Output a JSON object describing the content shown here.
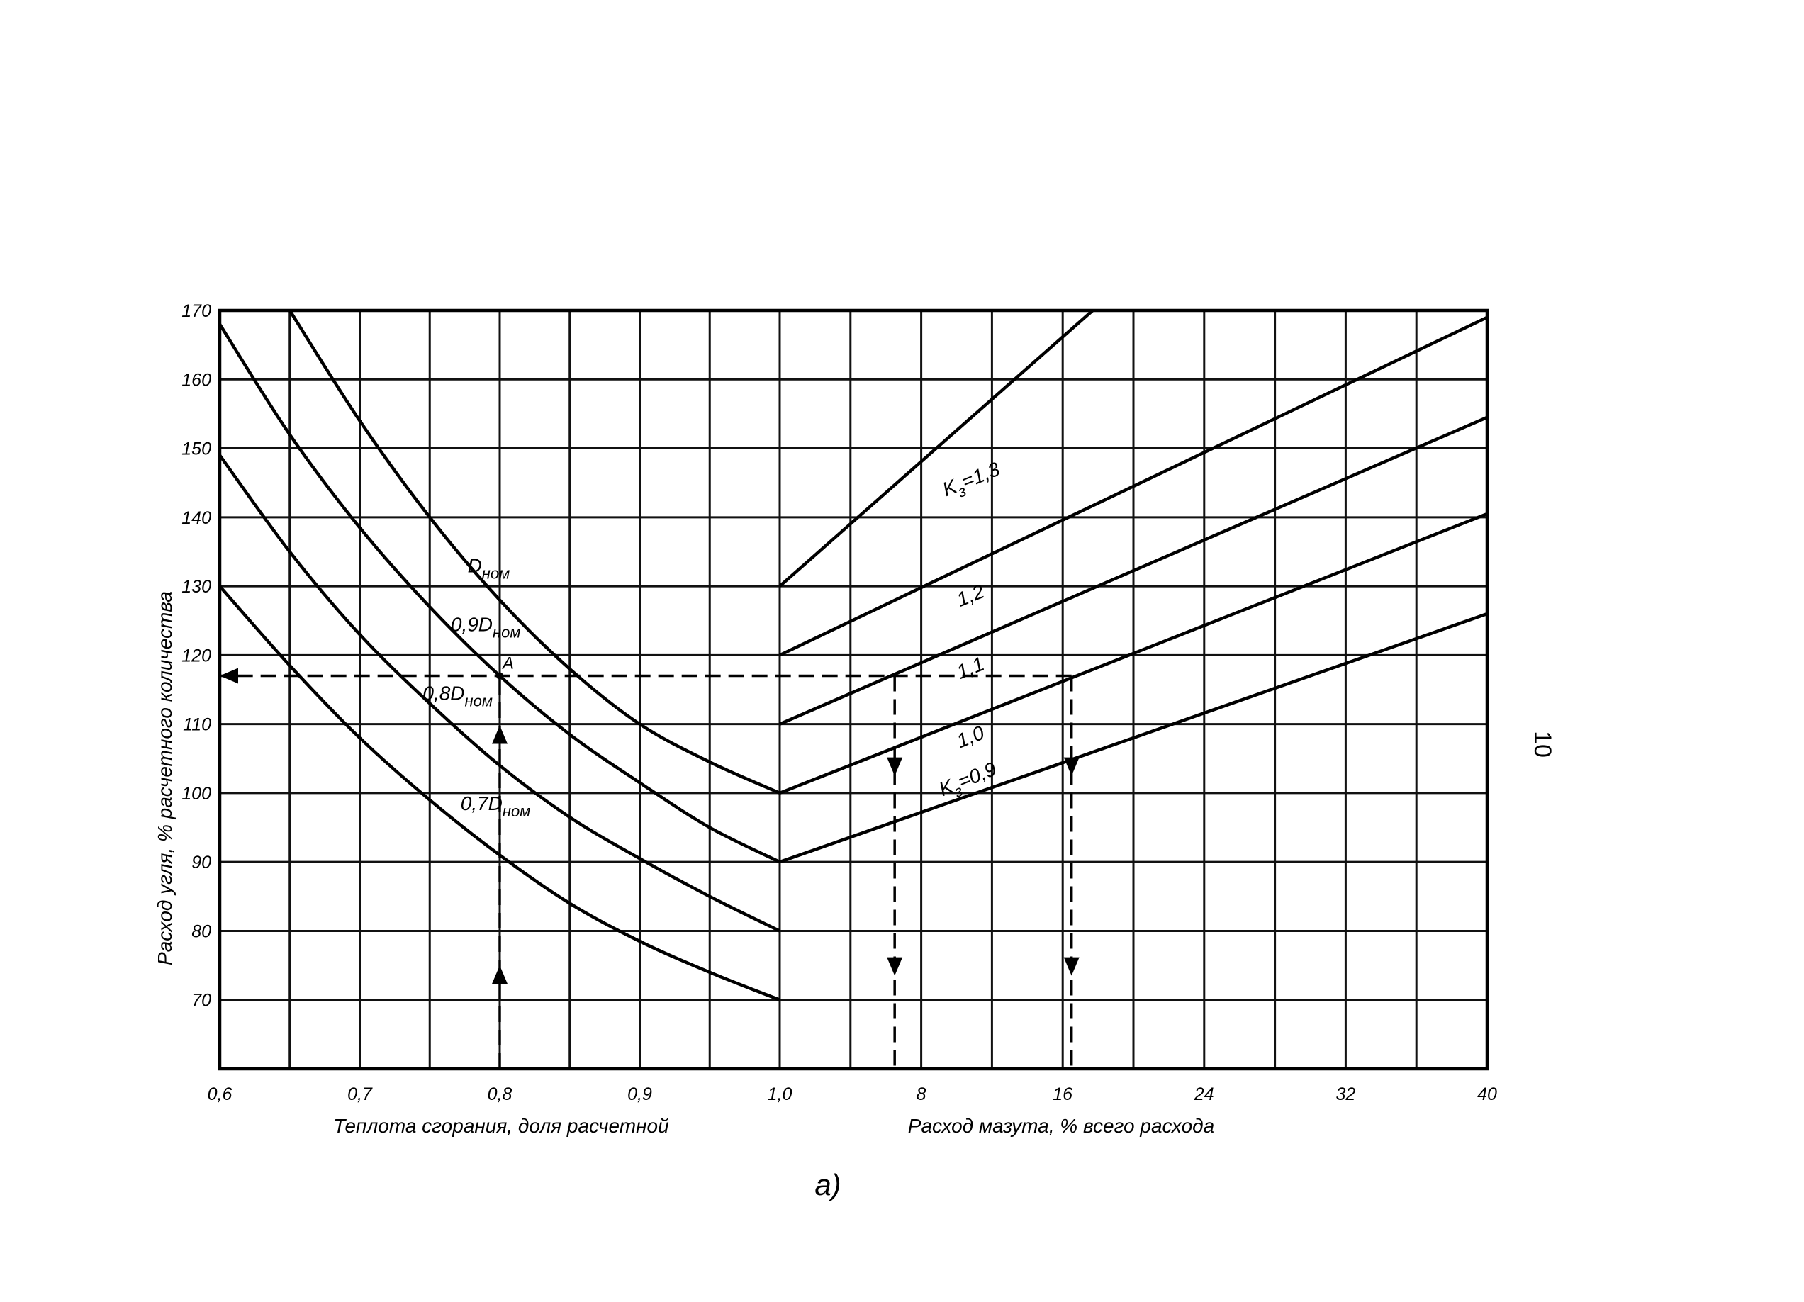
{
  "chart_data": {
    "type": "line",
    "ylabel": "Расход угля, % расчетного количества",
    "ylim": [
      60,
      170
    ],
    "y_ticks": [
      "70",
      "80",
      "90",
      "100",
      "110",
      "120",
      "130",
      "140",
      "150",
      "160",
      "170"
    ],
    "grid": true,
    "caption": "а)",
    "page_number": "10",
    "left_panel": {
      "xlabel": "Теплота сгорания, доля расчетной",
      "xlim": [
        0.6,
        1.0
      ],
      "x_ticks": [
        "0,6",
        "0,7",
        "0,8",
        "0,9",
        "1,0"
      ],
      "series": [
        {
          "name": "Dном",
          "label_main": "D",
          "label_sub": "ном",
          "x": [
            0.65,
            0.7,
            0.75,
            0.8,
            0.85,
            0.9,
            0.95,
            1.0
          ],
          "values": [
            170,
            154,
            140,
            128,
            118,
            110,
            104.5,
            100
          ]
        },
        {
          "name": "0,9Dном",
          "label_main": "0,9D",
          "label_sub": "ном",
          "x": [
            0.6,
            0.65,
            0.7,
            0.75,
            0.8,
            0.85,
            0.9,
            0.95,
            1.0
          ],
          "values": [
            168,
            152,
            138.5,
            127,
            117,
            108.5,
            101.5,
            95,
            90
          ]
        },
        {
          "name": "0,8Dном",
          "label_main": "0,8D",
          "label_sub": "ном",
          "x": [
            0.6,
            0.65,
            0.7,
            0.75,
            0.8,
            0.85,
            0.9,
            0.95,
            1.0
          ],
          "values": [
            149,
            135,
            123,
            113,
            104,
            96.5,
            90.5,
            85,
            80
          ]
        },
        {
          "name": "0,7Dном",
          "label_main": "0,7D",
          "label_sub": "ном",
          "x": [
            0.6,
            0.65,
            0.7,
            0.75,
            0.8,
            0.85,
            0.9,
            0.95,
            1.0
          ],
          "values": [
            130,
            118.5,
            108,
            99,
            91,
            84,
            78.5,
            74,
            70
          ]
        }
      ]
    },
    "right_panel": {
      "xlabel": "Расход мазута, % всего расхода",
      "xlim": [
        0,
        40
      ],
      "x_ticks": [
        "8",
        "16",
        "24",
        "32",
        "40"
      ],
      "series": [
        {
          "name": "Kз=1,3",
          "label_main": "K",
          "label_sub": "з",
          "label_tail": "=1,3",
          "x": [
            0,
            17.7
          ],
          "values": [
            130,
            170
          ]
        },
        {
          "name": "1,2",
          "label_main": "1,2",
          "x": [
            0,
            40
          ],
          "values": [
            120,
            169
          ]
        },
        {
          "name": "1,1",
          "label_main": "1,1",
          "x": [
            0,
            40
          ],
          "values": [
            110,
            154.5
          ]
        },
        {
          "name": "1,0",
          "label_main": "1,0",
          "x": [
            0,
            40
          ],
          "values": [
            100,
            140.5
          ]
        },
        {
          "name": "Kз=0,9",
          "label_main": "K",
          "label_sub": "з",
          "label_tail": "=0,9",
          "x": [
            0,
            40
          ],
          "values": [
            90,
            126
          ]
        }
      ]
    },
    "annotations": [
      {
        "label": "A",
        "panel": "left",
        "x": 0.8,
        "y": 117
      }
    ],
    "guides": [
      {
        "name": "vertical-0.8",
        "panel": "left",
        "x": 0.8,
        "from": 60,
        "to": 117,
        "arrow": "up"
      },
      {
        "name": "horizontal-117",
        "y": 117,
        "from_panel": "right",
        "from_x": 16.5,
        "to_panel": "left",
        "to_x": 0.6,
        "arrow": "left"
      },
      {
        "name": "vertical-fuel-1",
        "panel": "right",
        "x": 6.5,
        "from": 117,
        "to": 60,
        "arrow": "down"
      },
      {
        "name": "vertical-fuel-2",
        "panel": "right",
        "x": 16.5,
        "from": 117,
        "to": 60,
        "arrow": "down"
      }
    ]
  }
}
